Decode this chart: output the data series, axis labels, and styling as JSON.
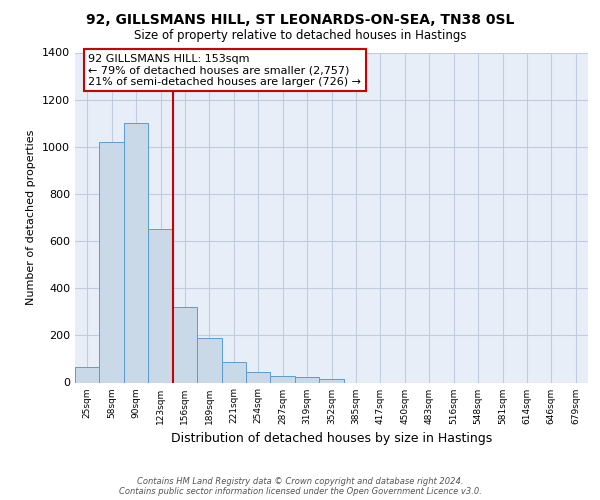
{
  "title_line1": "92, GILLSMANS HILL, ST LEONARDS-ON-SEA, TN38 0SL",
  "title_line2": "Size of property relative to detached houses in Hastings",
  "xlabel": "Distribution of detached houses by size in Hastings",
  "ylabel": "Number of detached properties",
  "categories": [
    "25sqm",
    "58sqm",
    "90sqm",
    "123sqm",
    "156sqm",
    "189sqm",
    "221sqm",
    "254sqm",
    "287sqm",
    "319sqm",
    "352sqm",
    "385sqm",
    "417sqm",
    "450sqm",
    "483sqm",
    "516sqm",
    "548sqm",
    "581sqm",
    "614sqm",
    "646sqm",
    "679sqm"
  ],
  "values": [
    65,
    1020,
    1100,
    650,
    320,
    190,
    88,
    45,
    28,
    22,
    15,
    0,
    0,
    0,
    0,
    0,
    0,
    0,
    0,
    0,
    0
  ],
  "bar_color": "#c9d9e8",
  "bar_edge_color": "#5b9bd5",
  "vline_index": 3,
  "vline_color": "#cc0000",
  "annotation_line1": "92 GILLSMANS HILL: 153sqm",
  "annotation_line2": "← 79% of detached houses are smaller (2,757)",
  "annotation_line3": "21% of semi-detached houses are larger (726) →",
  "annotation_box_color": "white",
  "annotation_box_edge_color": "#cc0000",
  "ylim": [
    0,
    1400
  ],
  "yticks": [
    0,
    200,
    400,
    600,
    800,
    1000,
    1200,
    1400
  ],
  "footnote_line1": "Contains HM Land Registry data © Crown copyright and database right 2024.",
  "footnote_line2": "Contains public sector information licensed under the Open Government Licence v3.0.",
  "fig_bg": "white",
  "axes_bg": "#e8eef8",
  "grid_color": "#c0cce0"
}
